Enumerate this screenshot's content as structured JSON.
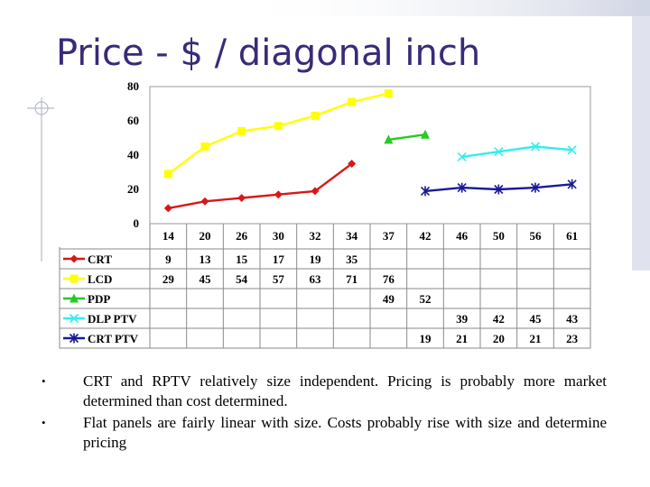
{
  "title": "Price - $ / diagonal inch",
  "colors": {
    "title": "#3a2a78",
    "crt": "#d81818",
    "lcd": "#ffff00",
    "pdp": "#22cc22",
    "dlp": "#33eeee",
    "crt_ptv": "#1a1a99"
  },
  "chart_data": {
    "type": "line",
    "categories": [
      "14",
      "20",
      "26",
      "30",
      "32",
      "34",
      "37",
      "42",
      "46",
      "50",
      "56",
      "61"
    ],
    "ylim": [
      0,
      80
    ],
    "yticks": [
      "0",
      "20",
      "40",
      "60",
      "80"
    ],
    "grid": false,
    "legend": "data-table",
    "series": [
      {
        "name": "CRT",
        "marker": "diamond",
        "values": [
          9,
          13,
          15,
          17,
          19,
          35,
          null,
          null,
          null,
          null,
          null,
          null
        ]
      },
      {
        "name": "LCD",
        "marker": "square",
        "values": [
          29,
          45,
          54,
          57,
          63,
          71,
          76,
          null,
          null,
          null,
          null,
          null
        ]
      },
      {
        "name": "PDP",
        "marker": "triangle",
        "values": [
          null,
          null,
          null,
          null,
          null,
          null,
          49,
          52,
          null,
          null,
          null,
          null
        ]
      },
      {
        "name": "DLP PTV",
        "marker": "x",
        "values": [
          null,
          null,
          null,
          null,
          null,
          null,
          null,
          null,
          39,
          42,
          45,
          43
        ]
      },
      {
        "name": "CRT PTV",
        "marker": "star",
        "values": [
          null,
          null,
          null,
          null,
          null,
          null,
          null,
          19,
          21,
          20,
          21,
          23
        ]
      }
    ]
  },
  "bullets": [
    "CRT and RPTV relatively size independent. Pricing is probably more market determined than cost determined.",
    "Flat panels are fairly linear with size. Costs probably rise with size and determine pricing"
  ],
  "bullet_symbol": "•"
}
